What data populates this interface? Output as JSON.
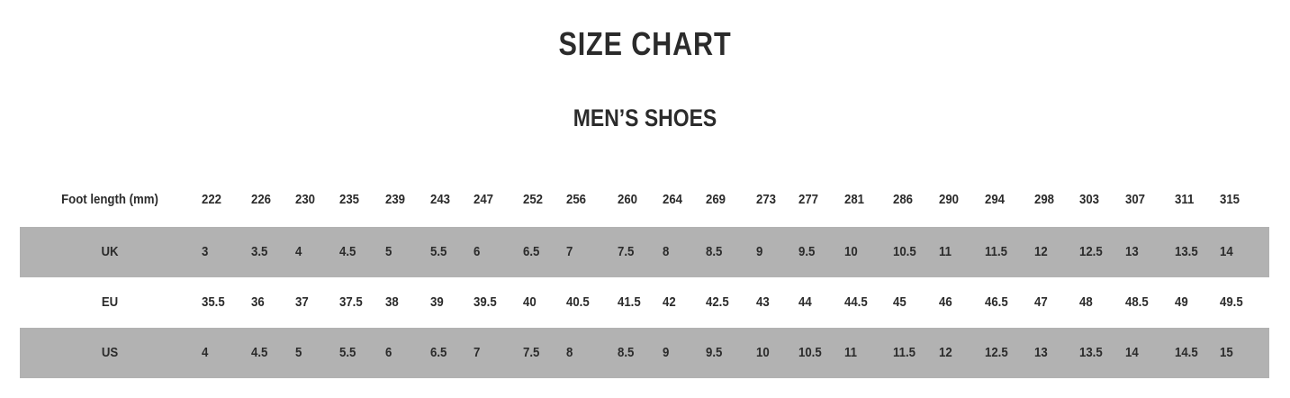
{
  "title": "SIZE CHART",
  "subtitle": "MEN’S SHOES",
  "colors": {
    "text": "#2b2b2b",
    "shaded_row": "#b2b2b2"
  },
  "table": {
    "rows": [
      {
        "label": "Foot length (mm)",
        "shaded": false,
        "values": [
          "222",
          "226",
          "230",
          "235",
          "239",
          "243",
          "247",
          "252",
          "256",
          "260",
          "264",
          "269",
          "273",
          "277",
          "281",
          "286",
          "290",
          "294",
          "298",
          "303",
          "307",
          "311",
          "315"
        ]
      },
      {
        "label": "UK",
        "shaded": true,
        "values": [
          "3",
          "3.5",
          "4",
          "4.5",
          "5",
          "5.5",
          "6",
          "6.5",
          "7",
          "7.5",
          "8",
          "8.5",
          "9",
          "9.5",
          "10",
          "10.5",
          "11",
          "11.5",
          "12",
          "12.5",
          "13",
          "13.5",
          "14"
        ]
      },
      {
        "label": "EU",
        "shaded": false,
        "values": [
          "35.5",
          "36",
          "37",
          "37.5",
          "38",
          "39",
          "39.5",
          "40",
          "40.5",
          "41.5",
          "42",
          "42.5",
          "43",
          "44",
          "44.5",
          "45",
          "46",
          "46.5",
          "47",
          "48",
          "48.5",
          "49",
          "49.5"
        ]
      },
      {
        "label": "US",
        "shaded": true,
        "values": [
          "4",
          "4.5",
          "5",
          "5.5",
          "6",
          "6.5",
          "7",
          "7.5",
          "8",
          "8.5",
          "9",
          "9.5",
          "10",
          "10.5",
          "11",
          "11.5",
          "12",
          "12.5",
          "13",
          "13.5",
          "14",
          "14.5",
          "15"
        ]
      }
    ]
  }
}
